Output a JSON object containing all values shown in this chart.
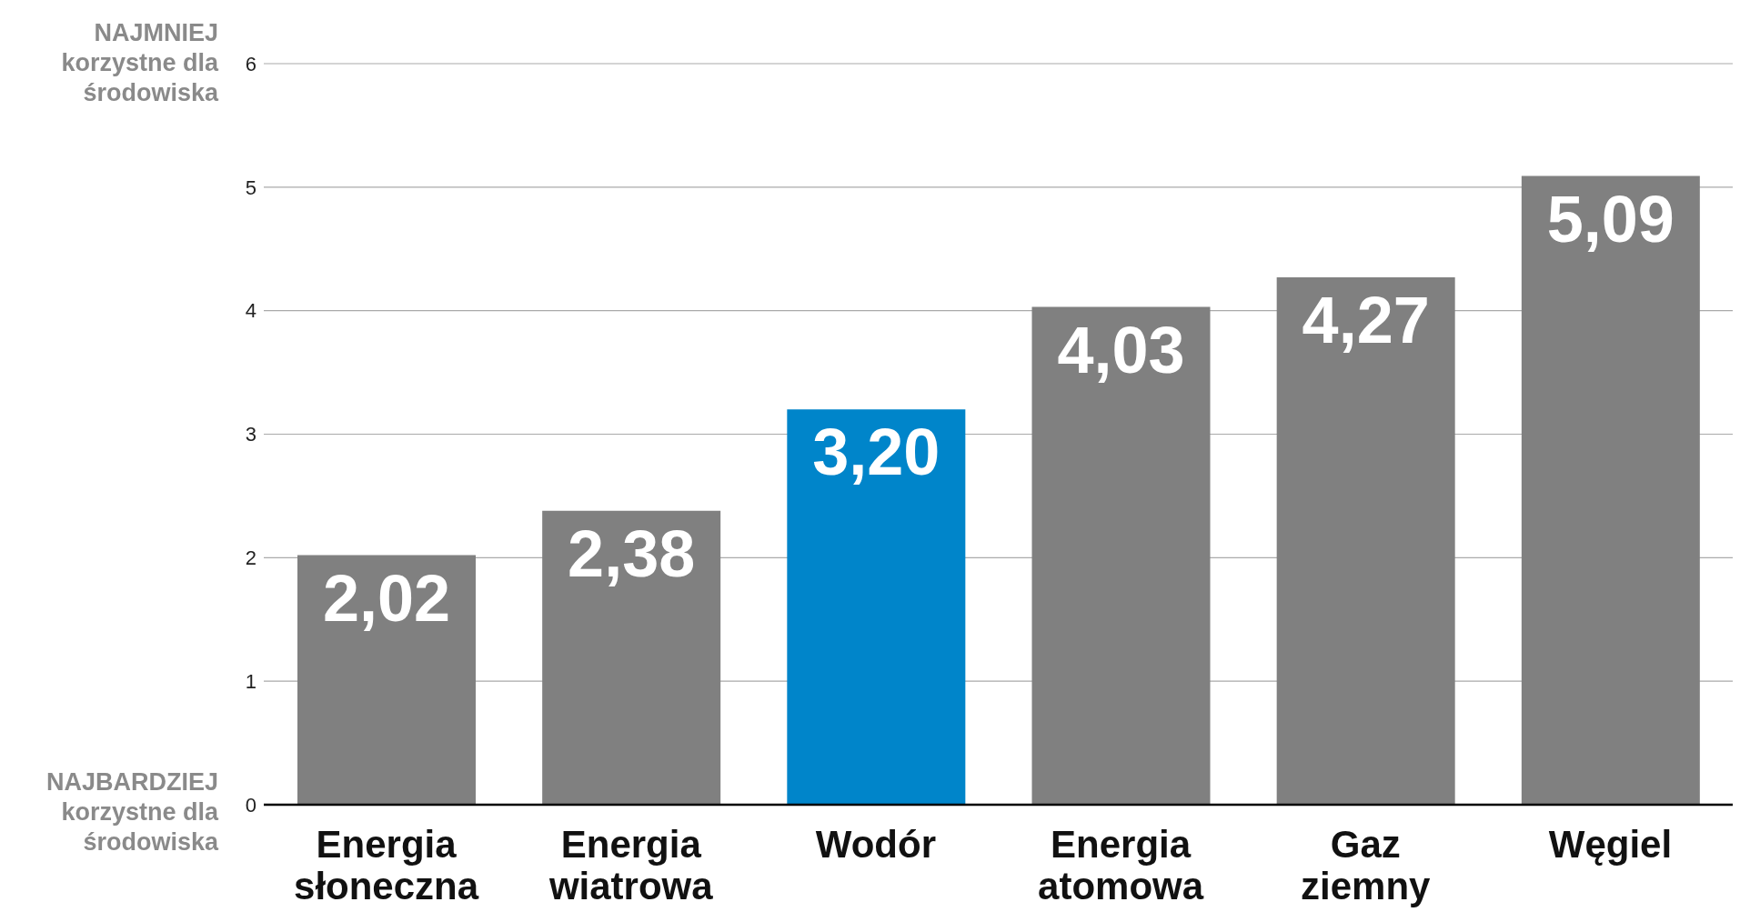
{
  "chart_data": {
    "type": "bar",
    "categories": [
      "Energia słoneczna",
      "Energia wiatrowa",
      "Wodór",
      "Energia atomowa",
      "Gaz ziemny",
      "Węgiel"
    ],
    "values": [
      2.02,
      2.38,
      3.2,
      4.03,
      4.27,
      5.09
    ],
    "colors": [
      "#808080",
      "#808080",
      "#0085ca",
      "#808080",
      "#808080",
      "#808080"
    ],
    "value_labels": [
      "2,02",
      "2,38",
      "3,20",
      "4,03",
      "4,27",
      "5,09"
    ],
    "ylim": [
      0,
      6
    ],
    "yticks": [
      0,
      1,
      2,
      3,
      4,
      5,
      6
    ],
    "grid": "y",
    "legend": false,
    "annotations": [
      "NAJMNIEJ\nkorzystne dla\nśrodowiska",
      "NAJBARDZIEJ\nkorzystne dla\nśrodowiska"
    ]
  }
}
